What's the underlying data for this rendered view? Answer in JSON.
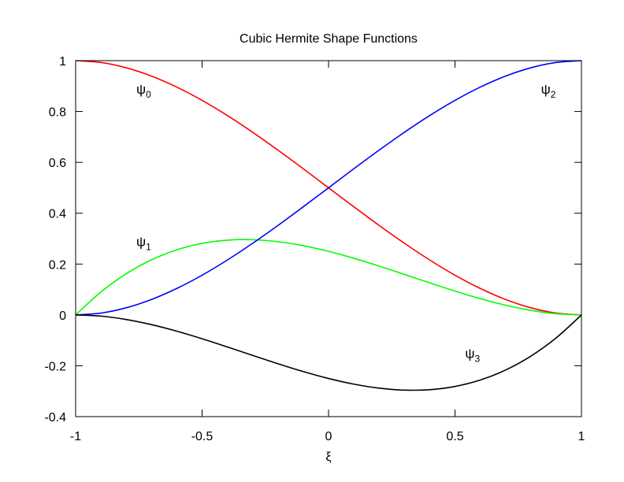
{
  "chart_data": {
    "type": "line",
    "title": "Cubic Hermite Shape Functions",
    "xlabel": "ξ",
    "ylabel": "",
    "xlim": [
      -1,
      1
    ],
    "ylim": [
      -0.4,
      1
    ],
    "grid": false,
    "xticks": [
      -1,
      -0.5,
      0,
      0.5,
      1
    ],
    "xtick_labels": [
      "-1",
      "-0.5",
      "0",
      "0.5",
      "1"
    ],
    "yticks": [
      -0.4,
      -0.2,
      0,
      0.2,
      0.4,
      0.6,
      0.8,
      1
    ],
    "ytick_labels": [
      "-0.4",
      "-0.2",
      "0",
      "0.2",
      "0.4",
      "0.6",
      "0.8",
      "1"
    ],
    "x": [
      -1,
      -0.9,
      -0.8,
      -0.7,
      -0.6,
      -0.5,
      -0.4,
      -0.3,
      -0.2,
      -0.1,
      0,
      0.1,
      0.2,
      0.3,
      0.4,
      0.5,
      0.6,
      0.7,
      0.8,
      0.9,
      1
    ],
    "series": [
      {
        "color": "#ff0000",
        "values": [
          1,
          0.99275,
          0.972,
          0.93925,
          0.896,
          0.84375,
          0.784,
          0.71825,
          0.648,
          0.57475,
          0.5,
          0.42525,
          0.352,
          0.28175,
          0.216,
          0.15625,
          0.104,
          0.06075,
          0.028,
          0.00725,
          0
        ]
      },
      {
        "color": "#00ff00",
        "values": [
          0,
          0.09025,
          0.162,
          0.21675,
          0.256,
          0.28125,
          0.294,
          0.29575,
          0.288,
          0.27225,
          0.25,
          0.22275,
          0.192,
          0.15925,
          0.126,
          0.09375,
          0.064,
          0.03825,
          0.018,
          0.00475,
          0
        ]
      },
      {
        "color": "#0000ff",
        "values": [
          0,
          0.00725,
          0.028,
          0.06075,
          0.104,
          0.15625,
          0.216,
          0.28175,
          0.352,
          0.42525,
          0.5,
          0.57475,
          0.648,
          0.71825,
          0.784,
          0.84375,
          0.896,
          0.93925,
          0.972,
          0.99275,
          1
        ]
      },
      {
        "color": "#000000",
        "values": [
          0,
          -0.00475,
          -0.018,
          -0.03825,
          -0.064,
          -0.09375,
          -0.126,
          -0.15925,
          -0.192,
          -0.22275,
          -0.25,
          -0.27225,
          -0.288,
          -0.29575,
          -0.294,
          -0.28125,
          -0.256,
          -0.21675,
          -0.162,
          -0.09025,
          0
        ]
      }
    ],
    "annotations": [
      {
        "base": "ψ",
        "sub": "0",
        "x": -0.76,
        "y": 0.87
      },
      {
        "base": "ψ",
        "sub": "1",
        "x": -0.76,
        "y": 0.27
      },
      {
        "base": "ψ",
        "sub": "2",
        "x": 0.84,
        "y": 0.87
      },
      {
        "base": "ψ",
        "sub": "3",
        "x": 0.54,
        "y": -0.17
      }
    ]
  }
}
